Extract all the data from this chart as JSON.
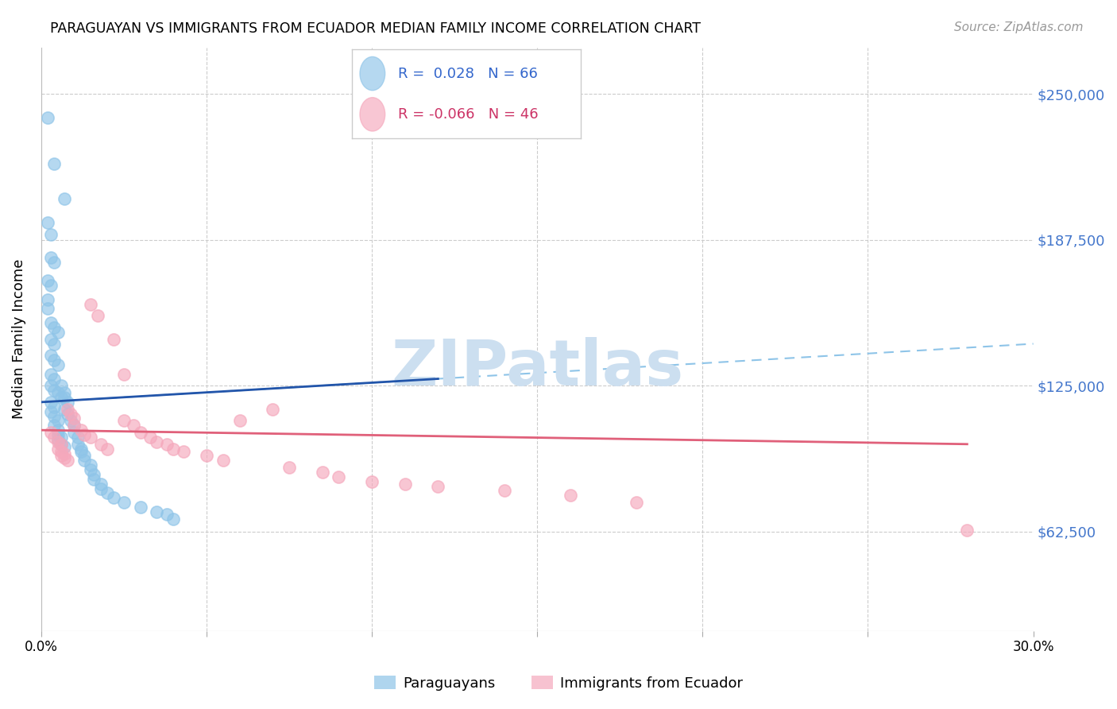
{
  "title": "PARAGUAYAN VS IMMIGRANTS FROM ECUADOR MEDIAN FAMILY INCOME CORRELATION CHART",
  "source": "Source: ZipAtlas.com",
  "ylabel": "Median Family Income",
  "yticks": [
    62500,
    125000,
    187500,
    250000
  ],
  "ytick_labels": [
    "$62,500",
    "$125,000",
    "$187,500",
    "$250,000"
  ],
  "xlim": [
    0.0,
    0.3
  ],
  "ylim": [
    20000,
    270000
  ],
  "legend_blue_r": "0.028",
  "legend_blue_n": "66",
  "legend_pink_r": "-0.066",
  "legend_pink_n": "46",
  "blue_color": "#8ec4e8",
  "pink_color": "#f5a8bc",
  "blue_line_color": "#2255aa",
  "pink_line_color": "#e0607a",
  "dashed_line_color": "#8ec4e8",
  "watermark": "ZIPatlas",
  "watermark_color": "#ccdff0",
  "blue_scatter_x": [
    0.002,
    0.004,
    0.007,
    0.002,
    0.003,
    0.003,
    0.004,
    0.002,
    0.003,
    0.002,
    0.002,
    0.003,
    0.004,
    0.005,
    0.003,
    0.004,
    0.003,
    0.004,
    0.005,
    0.003,
    0.004,
    0.003,
    0.004,
    0.005,
    0.006,
    0.003,
    0.004,
    0.003,
    0.004,
    0.005,
    0.004,
    0.005,
    0.005,
    0.006,
    0.005,
    0.006,
    0.007,
    0.006,
    0.007,
    0.007,
    0.008,
    0.007,
    0.008,
    0.009,
    0.01,
    0.01,
    0.011,
    0.011,
    0.012,
    0.012,
    0.013,
    0.013,
    0.015,
    0.015,
    0.016,
    0.016,
    0.018,
    0.018,
    0.02,
    0.022,
    0.025,
    0.03,
    0.035,
    0.038,
    0.04
  ],
  "blue_scatter_y": [
    240000,
    220000,
    205000,
    195000,
    190000,
    180000,
    178000,
    170000,
    168000,
    162000,
    158000,
    152000,
    150000,
    148000,
    145000,
    143000,
    138000,
    136000,
    134000,
    130000,
    128000,
    125000,
    123000,
    122000,
    120000,
    118000,
    116000,
    114000,
    112000,
    110000,
    108000,
    106000,
    104000,
    103000,
    102000,
    100000,
    99000,
    125000,
    122000,
    120000,
    118000,
    115000,
    113000,
    110000,
    108000,
    105000,
    103000,
    100000,
    98000,
    97000,
    95000,
    93000,
    91000,
    89000,
    87000,
    85000,
    83000,
    81000,
    79000,
    77000,
    75000,
    73000,
    71000,
    70000,
    68000
  ],
  "pink_scatter_x": [
    0.003,
    0.004,
    0.005,
    0.006,
    0.005,
    0.006,
    0.007,
    0.006,
    0.007,
    0.008,
    0.008,
    0.009,
    0.01,
    0.01,
    0.012,
    0.013,
    0.015,
    0.015,
    0.017,
    0.018,
    0.02,
    0.022,
    0.025,
    0.025,
    0.028,
    0.03,
    0.033,
    0.035,
    0.038,
    0.04,
    0.043,
    0.05,
    0.055,
    0.06,
    0.07,
    0.075,
    0.085,
    0.09,
    0.1,
    0.11,
    0.12,
    0.14,
    0.16,
    0.18,
    0.28
  ],
  "pink_scatter_y": [
    105000,
    103000,
    101000,
    100000,
    98000,
    97000,
    96000,
    95000,
    94000,
    93000,
    115000,
    113000,
    111000,
    108000,
    106000,
    104000,
    103000,
    160000,
    155000,
    100000,
    98000,
    145000,
    130000,
    110000,
    108000,
    105000,
    103000,
    101000,
    100000,
    98000,
    97000,
    95000,
    93000,
    110000,
    115000,
    90000,
    88000,
    86000,
    84000,
    83000,
    82000,
    80000,
    78000,
    75000,
    63000
  ]
}
